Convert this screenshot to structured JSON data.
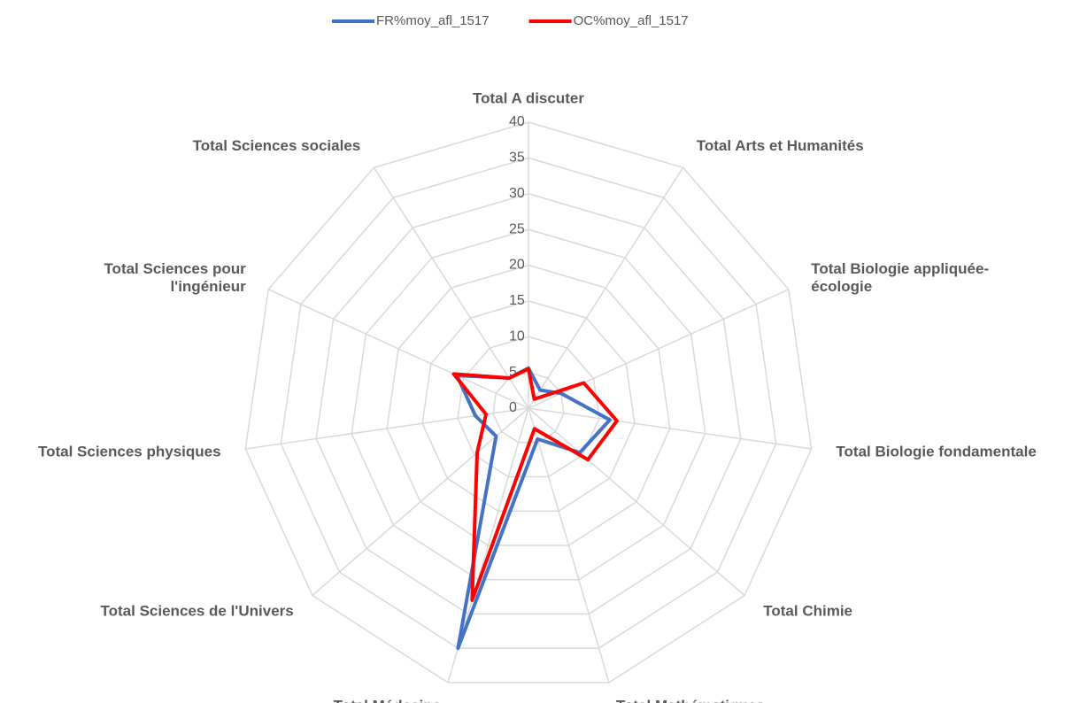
{
  "chart_data": {
    "type": "radar",
    "categories": [
      "Total A discuter",
      "Total Arts et Humanités",
      "Total Biologie appliquée-\nécologie",
      "Total Biologie fondamentale",
      "Total Chimie",
      "Total Mathématiques",
      "Total Médecine",
      "Total Sciences de l'Univers",
      "Total Sciences physiques",
      "Total Sciences pour\nl'ingénieur",
      "Total Sciences sociales"
    ],
    "series": [
      {
        "name": "FR%moy_afl_1517",
        "color": "#4472c4",
        "values": [
          5.6,
          3,
          5,
          11.5,
          9.5,
          4.5,
          35,
          6,
          7.5,
          11,
          5
        ]
      },
      {
        "name": "OC%moy_afl_1517",
        "color": "#ff0000",
        "values": [
          5.5,
          1.5,
          8.5,
          12.5,
          11,
          3,
          28,
          9.5,
          6,
          11.5,
          5
        ]
      }
    ],
    "ylim": [
      0,
      40
    ],
    "yticks": [
      0,
      5,
      10,
      15,
      20,
      25,
      30,
      35,
      40
    ],
    "grid": true,
    "legend": "top"
  }
}
